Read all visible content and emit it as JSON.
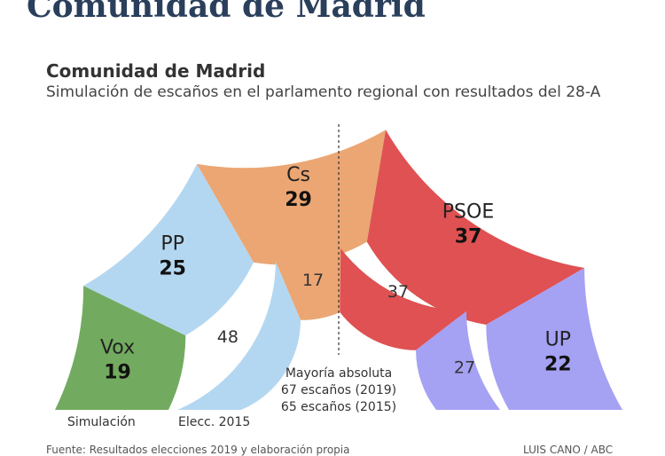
{
  "page": {
    "heading": "Comunidad de Madrid"
  },
  "chart_data": {
    "type": "pie",
    "title": "Comunidad de Madrid",
    "subtitle": "Simulación de escaños en el parlamento regional con resultados del 28-A",
    "rings": [
      {
        "label": "Simulación",
        "parties": [
          {
            "name": "Vox",
            "seats": 19,
            "color": "#72ab5f"
          },
          {
            "name": "PP",
            "seats": 25,
            "color": "#b4d7f1"
          },
          {
            "name": "Cs",
            "seats": 29,
            "color": "#eba673"
          },
          {
            "name": "PSOE",
            "seats": 37,
            "color": "#df5152"
          },
          {
            "name": "UP",
            "seats": 22,
            "color": "#a5a1f3"
          }
        ]
      },
      {
        "label": "Elecc. 2015",
        "parties": [
          {
            "name": "PP",
            "seats": 48,
            "color": "#b4d7f1"
          },
          {
            "name": "Cs",
            "seats": 17,
            "color": "#eba673"
          },
          {
            "name": "PSOE",
            "seats": 37,
            "color": "#df5152"
          },
          {
            "name": "UP",
            "seats": 27,
            "color": "#a5a1f3"
          }
        ]
      }
    ],
    "majority": {
      "title": "Mayoría absoluta",
      "line_2019": "67 escaños (2019)",
      "line_2015": "65 escaños (2015)"
    }
  },
  "footer": {
    "source": "Fuente: Resultados elecciones 2019 y elaboración propia",
    "credit": "LUIS CANO / ABC"
  }
}
